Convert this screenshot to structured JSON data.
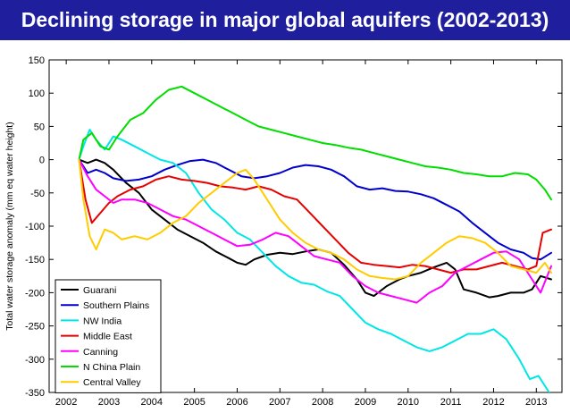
{
  "header": {
    "title": "Declining storage in major global aquifers (2002-2013)",
    "background": "#1f1f9e",
    "text_color": "#ffffff"
  },
  "chart_data": {
    "type": "line",
    "title": "Declining storage in major global aquifers (2002-2013)",
    "xlabel": "",
    "ylabel": "Total water storage anomaly (mm eq water height)",
    "xlim": [
      2001.6,
      2013.6
    ],
    "ylim": [
      -350,
      150
    ],
    "xticks": [
      2002,
      2003,
      2004,
      2005,
      2006,
      2007,
      2008,
      2009,
      2010,
      2011,
      2012,
      2013
    ],
    "yticks": [
      150,
      100,
      50,
      0,
      -50,
      -100,
      -150,
      -200,
      -250,
      -300,
      -350
    ],
    "grid": false,
    "legend_position": "bottom-left",
    "series": [
      {
        "name": "Guarani",
        "color": "#000000",
        "x": [
          2002.3,
          2002.5,
          2002.7,
          2002.9,
          2003.1,
          2003.4,
          2003.7,
          2004.0,
          2004.3,
          2004.6,
          2004.9,
          2005.2,
          2005.5,
          2005.8,
          2006.0,
          2006.2,
          2006.4,
          2006.7,
          2007.0,
          2007.3,
          2007.6,
          2007.9,
          2008.2,
          2008.5,
          2008.8,
          2009.0,
          2009.2,
          2009.5,
          2009.8,
          2010.0,
          2010.3,
          2010.6,
          2010.9,
          2011.1,
          2011.3,
          2011.6,
          2011.9,
          2012.1,
          2012.4,
          2012.7,
          2012.9,
          2013.1,
          2013.35
        ],
        "y": [
          0,
          -5,
          0,
          -5,
          -15,
          -35,
          -50,
          -75,
          -90,
          -105,
          -115,
          -125,
          -138,
          -148,
          -155,
          -158,
          -150,
          -143,
          -140,
          -142,
          -138,
          -135,
          -140,
          -158,
          -180,
          -200,
          -205,
          -190,
          -180,
          -175,
          -170,
          -162,
          -155,
          -165,
          -195,
          -200,
          -207,
          -205,
          -200,
          -200,
          -195,
          -175,
          -180
        ]
      },
      {
        "name": "Southern Plains",
        "color": "#0000cc",
        "x": [
          2002.3,
          2002.5,
          2002.7,
          2002.9,
          2003.1,
          2003.4,
          2003.7,
          2004.0,
          2004.3,
          2004.6,
          2004.9,
          2005.2,
          2005.5,
          2005.8,
          2006.1,
          2006.4,
          2006.7,
          2007.0,
          2007.3,
          2007.6,
          2007.9,
          2008.2,
          2008.5,
          2008.8,
          2009.1,
          2009.4,
          2009.7,
          2010.0,
          2010.3,
          2010.6,
          2010.9,
          2011.2,
          2011.5,
          2011.8,
          2012.1,
          2012.4,
          2012.7,
          2012.9,
          2013.1,
          2013.35
        ],
        "y": [
          0,
          -20,
          -15,
          -20,
          -28,
          -32,
          -30,
          -25,
          -15,
          -8,
          -2,
          0,
          -5,
          -15,
          -25,
          -28,
          -25,
          -20,
          -12,
          -8,
          -10,
          -15,
          -25,
          -40,
          -45,
          -43,
          -47,
          -48,
          -52,
          -58,
          -68,
          -78,
          -95,
          -110,
          -125,
          -135,
          -140,
          -148,
          -150,
          -140
        ]
      },
      {
        "name": "NW India",
        "color": "#00e6e6",
        "x": [
          2002.3,
          2002.4,
          2002.55,
          2002.7,
          2002.9,
          2003.1,
          2003.3,
          2003.6,
          2003.9,
          2004.2,
          2004.5,
          2004.8,
          2005.1,
          2005.4,
          2005.7,
          2006.0,
          2006.3,
          2006.6,
          2006.9,
          2007.2,
          2007.5,
          2007.8,
          2008.1,
          2008.4,
          2008.7,
          2009.0,
          2009.3,
          2009.6,
          2009.9,
          2010.2,
          2010.5,
          2010.8,
          2011.1,
          2011.4,
          2011.7,
          2012.0,
          2012.3,
          2012.6,
          2012.85,
          2013.05,
          2013.3
        ],
        "y": [
          0,
          20,
          45,
          30,
          15,
          35,
          30,
          20,
          10,
          0,
          -5,
          -20,
          -50,
          -75,
          -90,
          -110,
          -120,
          -140,
          -160,
          -175,
          -185,
          -188,
          -198,
          -205,
          -225,
          -245,
          -255,
          -262,
          -272,
          -282,
          -288,
          -282,
          -272,
          -262,
          -262,
          -255,
          -270,
          -300,
          -330,
          -325,
          -350
        ]
      },
      {
        "name": "Middle East",
        "color": "#e60000",
        "x": [
          2002.3,
          2002.45,
          2002.6,
          2002.8,
          2003.0,
          2003.2,
          2003.5,
          2003.8,
          2004.1,
          2004.4,
          2004.7,
          2005.0,
          2005.3,
          2005.6,
          2005.9,
          2006.2,
          2006.5,
          2006.8,
          2007.1,
          2007.4,
          2007.7,
          2008.0,
          2008.3,
          2008.6,
          2008.9,
          2009.2,
          2009.5,
          2009.8,
          2010.1,
          2010.4,
          2010.7,
          2011.0,
          2011.3,
          2011.6,
          2011.9,
          2012.2,
          2012.5,
          2012.8,
          2013.0,
          2013.15,
          2013.35
        ],
        "y": [
          0,
          -60,
          -95,
          -80,
          -65,
          -55,
          -45,
          -40,
          -30,
          -25,
          -30,
          -32,
          -35,
          -40,
          -42,
          -45,
          -40,
          -45,
          -55,
          -60,
          -80,
          -100,
          -120,
          -140,
          -155,
          -158,
          -160,
          -162,
          -158,
          -160,
          -165,
          -170,
          -165,
          -165,
          -160,
          -155,
          -160,
          -165,
          -160,
          -110,
          -105
        ]
      },
      {
        "name": "Canning",
        "color": "#ff00ff",
        "x": [
          2002.3,
          2002.5,
          2002.7,
          2002.9,
          2003.1,
          2003.3,
          2003.6,
          2003.9,
          2004.2,
          2004.5,
          2004.8,
          2005.1,
          2005.4,
          2005.7,
          2006.0,
          2006.3,
          2006.6,
          2006.9,
          2007.2,
          2007.5,
          2007.8,
          2008.1,
          2008.4,
          2008.7,
          2009.0,
          2009.3,
          2009.6,
          2009.9,
          2010.2,
          2010.5,
          2010.8,
          2011.1,
          2011.4,
          2011.7,
          2012.0,
          2012.3,
          2012.6,
          2012.9,
          2013.1,
          2013.35
        ],
        "y": [
          0,
          -25,
          -45,
          -55,
          -65,
          -60,
          -60,
          -65,
          -75,
          -85,
          -90,
          -100,
          -110,
          -120,
          -130,
          -128,
          -120,
          -110,
          -115,
          -130,
          -145,
          -150,
          -155,
          -175,
          -190,
          -200,
          -205,
          -210,
          -215,
          -200,
          -190,
          -170,
          -160,
          -150,
          -140,
          -138,
          -150,
          -180,
          -200,
          -160
        ]
      },
      {
        "name": "N China Plain",
        "color": "#00dd00",
        "x": [
          2002.3,
          2002.4,
          2002.6,
          2002.8,
          2003.0,
          2003.2,
          2003.5,
          2003.8,
          2004.1,
          2004.4,
          2004.7,
          2005.0,
          2005.3,
          2005.6,
          2005.9,
          2006.2,
          2006.5,
          2006.8,
          2007.1,
          2007.4,
          2007.7,
          2008.0,
          2008.3,
          2008.6,
          2008.9,
          2009.2,
          2009.5,
          2009.8,
          2010.1,
          2010.4,
          2010.7,
          2011.0,
          2011.3,
          2011.6,
          2011.9,
          2012.2,
          2012.5,
          2012.8,
          2013.0,
          2013.2,
          2013.35
        ],
        "y": [
          0,
          30,
          40,
          20,
          15,
          35,
          60,
          70,
          90,
          105,
          110,
          100,
          90,
          80,
          70,
          60,
          50,
          45,
          40,
          35,
          30,
          25,
          22,
          18,
          15,
          10,
          5,
          0,
          -5,
          -10,
          -12,
          -15,
          -20,
          -22,
          -25,
          -25,
          -20,
          -22,
          -30,
          -45,
          -60
        ]
      },
      {
        "name": "Central Valley",
        "color": "#ffcc00",
        "x": [
          2002.3,
          2002.4,
          2002.55,
          2002.7,
          2002.9,
          2003.1,
          2003.3,
          2003.6,
          2003.9,
          2004.2,
          2004.5,
          2004.8,
          2005.1,
          2005.4,
          2005.7,
          2006.0,
          2006.2,
          2006.4,
          2006.7,
          2007.0,
          2007.3,
          2007.6,
          2007.9,
          2008.2,
          2008.5,
          2008.8,
          2009.1,
          2009.4,
          2009.7,
          2010.0,
          2010.3,
          2010.6,
          2010.9,
          2011.2,
          2011.5,
          2011.8,
          2012.1,
          2012.4,
          2012.7,
          2013.0,
          2013.2,
          2013.35
        ],
        "y": [
          0,
          -60,
          -115,
          -135,
          -105,
          -110,
          -120,
          -115,
          -120,
          -110,
          -95,
          -85,
          -65,
          -50,
          -35,
          -20,
          -15,
          -30,
          -60,
          -90,
          -110,
          -125,
          -135,
          -140,
          -150,
          -165,
          -175,
          -178,
          -180,
          -175,
          -155,
          -140,
          -125,
          -115,
          -118,
          -125,
          -140,
          -160,
          -165,
          -170,
          -155,
          -170
        ]
      }
    ]
  }
}
